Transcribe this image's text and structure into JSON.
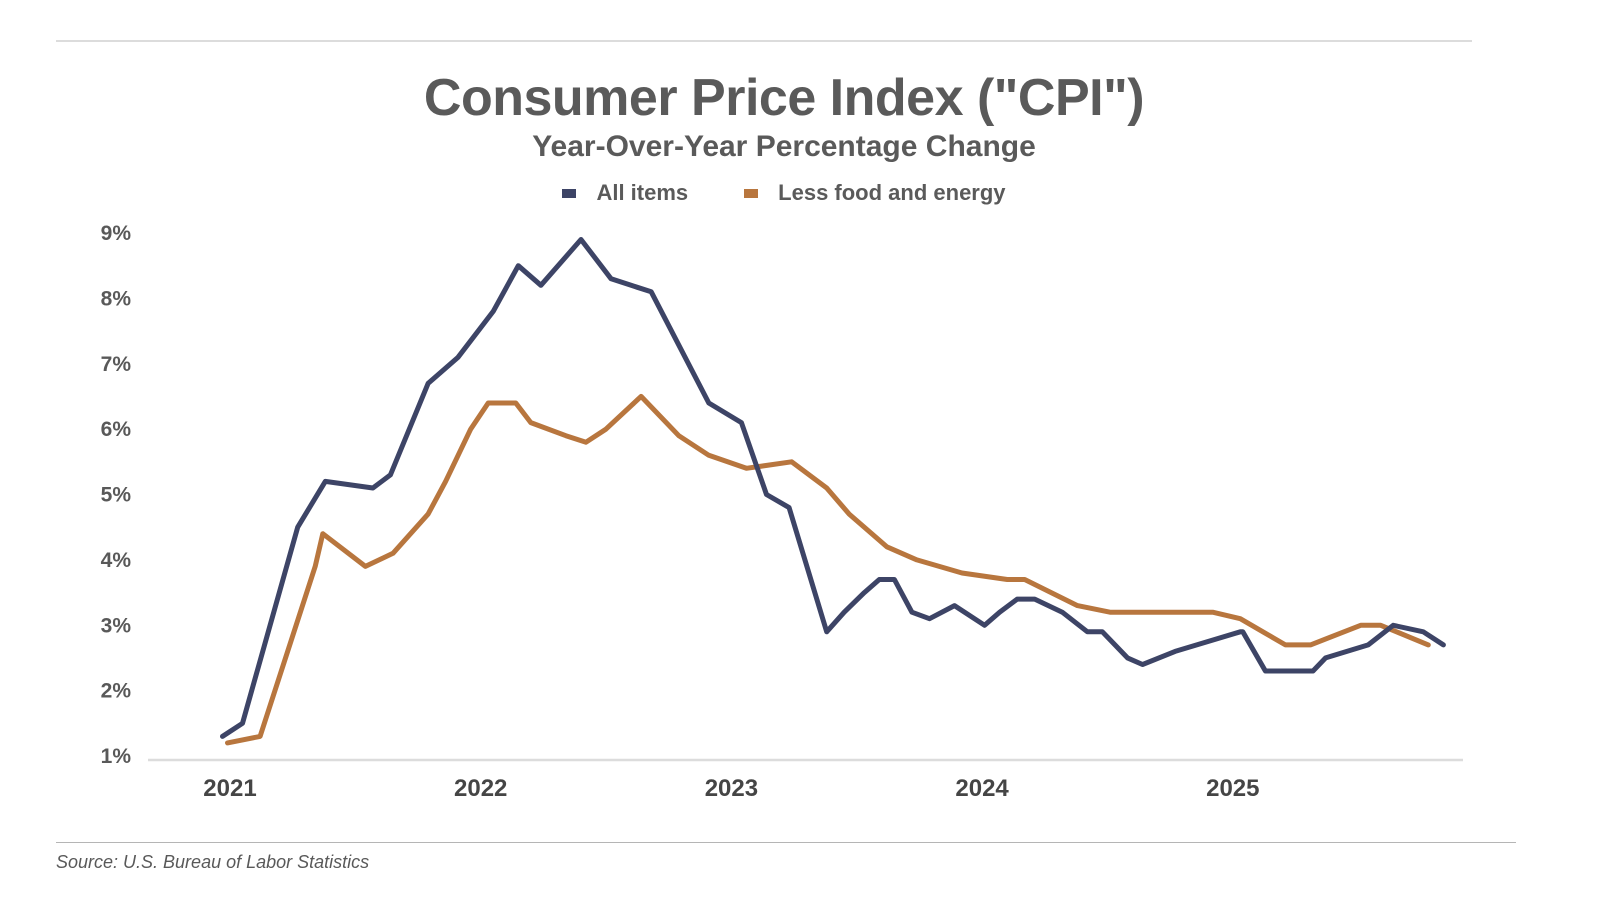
{
  "header": {
    "title": "Consumer Price Index (\"CPI\")",
    "subtitle": "Year-Over-Year Percentage Change"
  },
  "legend": [
    {
      "label": "All items",
      "color": "#3d4466"
    },
    {
      "label": "Less food and energy",
      "color": "#b8763e"
    }
  ],
  "footer": {
    "source": "Source: U.S. Bureau of Labor Statistics"
  },
  "chart_data": {
    "type": "line",
    "title": "Consumer Price Index (\"CPI\")",
    "subtitle": "Year-Over-Year Percentage Change",
    "xlabel": "",
    "ylabel": "",
    "xlim": [
      2020.97,
      2025.85
    ],
    "ylim": [
      1,
      9
    ],
    "grid": false,
    "legend_position": "top-center",
    "x_ticks": [
      2021,
      2022,
      2023,
      2024,
      2025
    ],
    "x_tick_labels": [
      "2021",
      "2022",
      "2023",
      "2024",
      "2025"
    ],
    "y_ticks": [
      1,
      2,
      3,
      4,
      5,
      6,
      7,
      8,
      9
    ],
    "y_tick_labels": [
      "1%",
      "2%",
      "3%",
      "4%",
      "5%",
      "6%",
      "7%",
      "8%",
      "9%"
    ],
    "series": [
      {
        "name": "All items",
        "color": "#3d4466",
        "x": [
          2020.97,
          2021.05,
          2021.27,
          2021.38,
          2021.57,
          2021.64,
          2021.79,
          2021.91,
          2022.05,
          2022.15,
          2022.24,
          2022.4,
          2022.52,
          2022.6,
          2022.68,
          2022.91,
          2023.04,
          2023.14,
          2023.23,
          2023.38,
          2023.45,
          2023.53,
          2023.59,
          2023.65,
          2023.72,
          2023.79,
          2023.89,
          2024.01,
          2024.07,
          2024.14,
          2024.21,
          2024.32,
          2024.42,
          2024.48,
          2024.58,
          2024.64,
          2024.77,
          2025.03,
          2025.04,
          2025.13,
          2025.32,
          2025.37,
          2025.54,
          2025.64,
          2025.76,
          2025.84
        ],
        "values": [
          1.3,
          1.5,
          4.5,
          5.2,
          5.1,
          5.3,
          6.7,
          7.1,
          7.8,
          8.5,
          8.2,
          8.9,
          8.3,
          8.2,
          8.1,
          6.4,
          6.1,
          5.0,
          4.8,
          2.9,
          3.2,
          3.5,
          3.7,
          3.7,
          3.2,
          3.1,
          3.3,
          3.0,
          3.2,
          3.4,
          3.4,
          3.2,
          2.9,
          2.9,
          2.5,
          2.4,
          2.6,
          2.9,
          2.9,
          2.3,
          2.3,
          2.5,
          2.7,
          3.0,
          2.9,
          2.7
        ]
      },
      {
        "name": "Less food and energy",
        "color": "#b8763e",
        "x": [
          2020.99,
          2021.12,
          2021.34,
          2021.37,
          2021.54,
          2021.65,
          2021.79,
          2021.86,
          2021.96,
          2022.03,
          2022.14,
          2022.2,
          2022.34,
          2022.42,
          2022.5,
          2022.64,
          2022.79,
          2022.91,
          2023.06,
          2023.24,
          2023.38,
          2023.47,
          2023.62,
          2023.74,
          2023.92,
          2024.1,
          2024.17,
          2024.38,
          2024.51,
          2024.67,
          2024.92,
          2025.03,
          2025.21,
          2025.31,
          2025.51,
          2025.59,
          2025.78
        ],
        "values": [
          1.2,
          1.3,
          3.9,
          4.4,
          3.9,
          4.1,
          4.7,
          5.2,
          6.0,
          6.4,
          6.4,
          6.1,
          5.9,
          5.8,
          6.0,
          6.5,
          5.9,
          5.6,
          5.4,
          5.5,
          5.1,
          4.7,
          4.2,
          4.0,
          3.8,
          3.7,
          3.7,
          3.3,
          3.2,
          3.2,
          3.2,
          3.1,
          2.7,
          2.7,
          3.0,
          3.0,
          2.7
        ]
      }
    ]
  }
}
